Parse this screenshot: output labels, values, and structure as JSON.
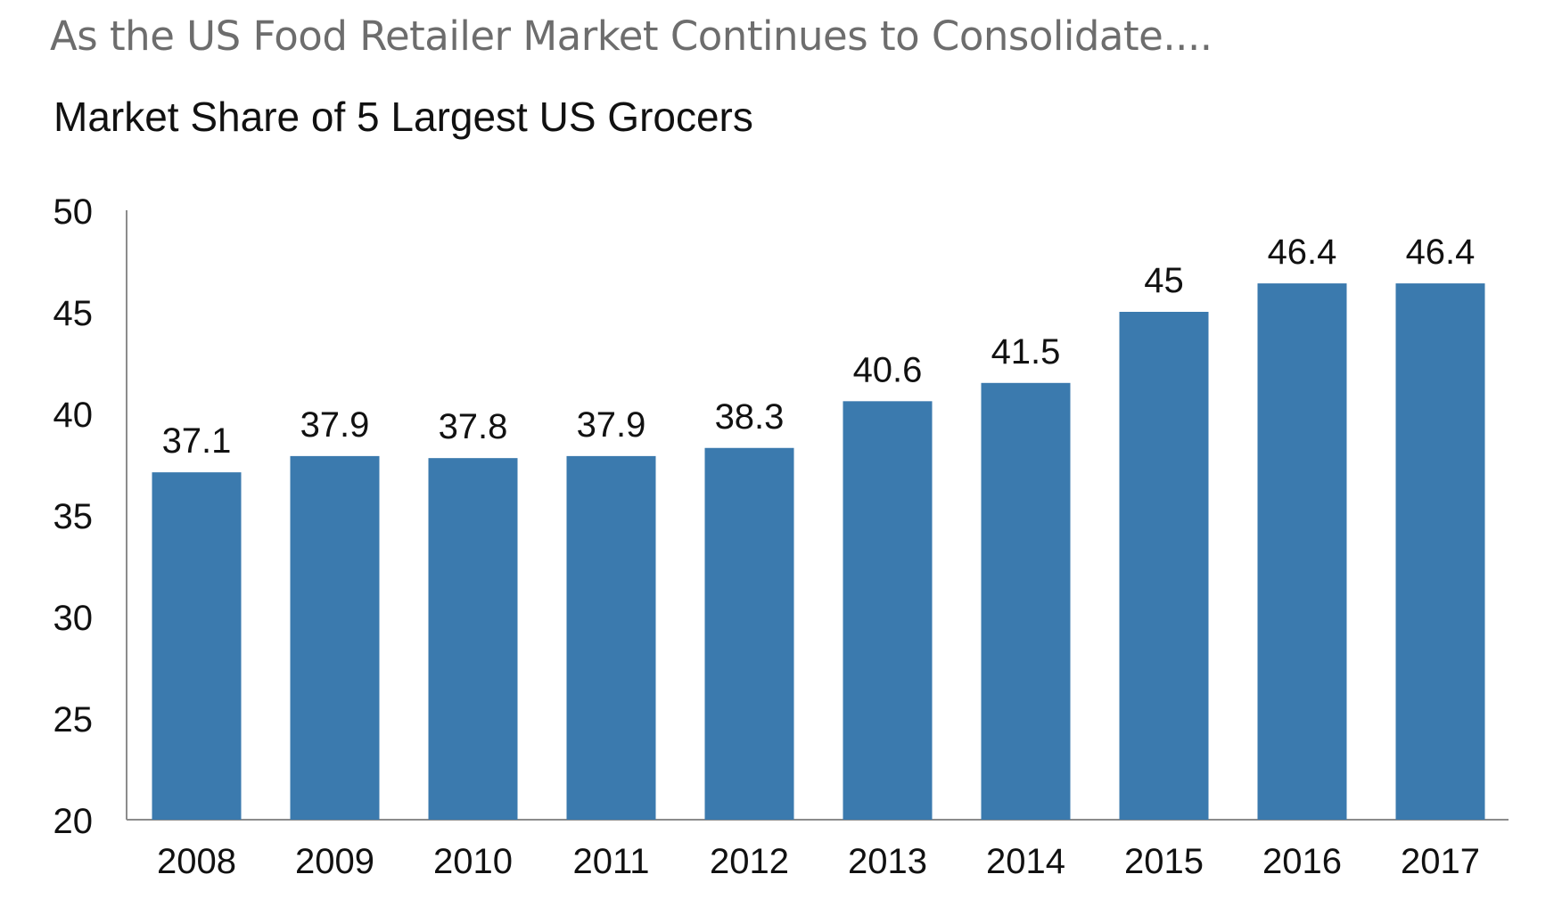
{
  "header": {
    "headline": "As the US Food Retailer Market Continues to Consolidate....",
    "chart_title": "Market Share of 5 Largest US Grocers"
  },
  "colors": {
    "bar": "#3b7aae",
    "axis": "#8c8c8c",
    "text": "#111111",
    "headline": "#6d6d6d"
  },
  "chart_data": {
    "type": "bar",
    "title": "Market Share of 5 Largest US Grocers",
    "xlabel": "",
    "ylabel": "",
    "categories": [
      "2008",
      "2009",
      "2010",
      "2011",
      "2012",
      "2013",
      "2014",
      "2015",
      "2016",
      "2017"
    ],
    "values": [
      37.1,
      37.9,
      37.8,
      37.9,
      38.3,
      40.6,
      41.5,
      45,
      46.4,
      46.4
    ],
    "data_labels": [
      "37.1",
      "37.9",
      "37.8",
      "37.9",
      "38.3",
      "40.6",
      "41.5",
      "45",
      "46.4",
      "46.4"
    ],
    "ylim": [
      20,
      50
    ],
    "yticks": [
      20,
      25,
      30,
      35,
      40,
      45,
      50
    ],
    "grid": false,
    "legend": "none"
  }
}
